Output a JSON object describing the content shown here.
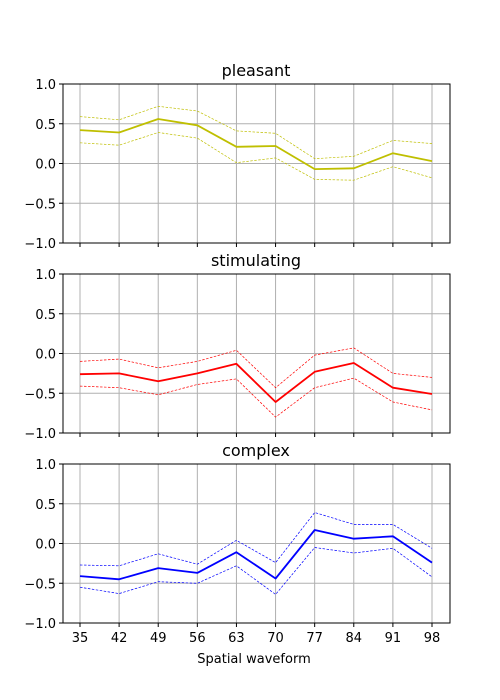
{
  "chart_data": [
    {
      "type": "line",
      "title": "pleasant",
      "xlabel": "",
      "ylabel": "",
      "x": [
        35,
        42,
        49,
        56,
        63,
        70,
        77,
        84,
        91,
        98
      ],
      "ylim": [
        -1.0,
        1.0
      ],
      "yticks": [
        "1.0",
        "0.5",
        "0.0",
        "−0.5",
        "−1.0"
      ],
      "grid": true,
      "color": "#bfbf00",
      "series": [
        {
          "role": "upper",
          "values": [
            0.59,
            0.55,
            0.72,
            0.66,
            0.41,
            0.38,
            0.06,
            0.09,
            0.29,
            0.25
          ]
        },
        {
          "role": "mean",
          "values": [
            0.42,
            0.39,
            0.56,
            0.48,
            0.21,
            0.22,
            -0.07,
            -0.06,
            0.13,
            0.03
          ]
        },
        {
          "role": "lower",
          "values": [
            0.26,
            0.23,
            0.39,
            0.32,
            0.01,
            0.07,
            -0.2,
            -0.21,
            -0.04,
            -0.18
          ]
        }
      ]
    },
    {
      "type": "line",
      "title": "stimulating",
      "xlabel": "",
      "ylabel": "",
      "x": [
        35,
        42,
        49,
        56,
        63,
        70,
        77,
        84,
        91,
        98
      ],
      "ylim": [
        -1.0,
        1.0
      ],
      "yticks": [
        "1.0",
        "0.5",
        "0.0",
        "−0.5",
        "−1.0"
      ],
      "grid": true,
      "color": "#ff0000",
      "series": [
        {
          "role": "upper",
          "values": [
            -0.1,
            -0.07,
            -0.18,
            -0.1,
            0.04,
            -0.43,
            -0.02,
            0.07,
            -0.25,
            -0.3
          ]
        },
        {
          "role": "mean",
          "values": [
            -0.26,
            -0.25,
            -0.35,
            -0.25,
            -0.13,
            -0.61,
            -0.23,
            -0.12,
            -0.43,
            -0.51
          ]
        },
        {
          "role": "lower",
          "values": [
            -0.41,
            -0.43,
            -0.52,
            -0.39,
            -0.32,
            -0.8,
            -0.43,
            -0.31,
            -0.61,
            -0.71
          ]
        }
      ]
    },
    {
      "type": "line",
      "title": "complex",
      "xlabel": "Spatial waveform",
      "ylabel": "",
      "x": [
        35,
        42,
        49,
        56,
        63,
        70,
        77,
        84,
        91,
        98
      ],
      "xticks": [
        "35",
        "42",
        "49",
        "56",
        "63",
        "70",
        "77",
        "84",
        "91",
        "98"
      ],
      "ylim": [
        -1.0,
        1.0
      ],
      "yticks": [
        "1.0",
        "0.5",
        "0.0",
        "−0.5",
        "−1.0"
      ],
      "grid": true,
      "color": "#0000ff",
      "series": [
        {
          "role": "upper",
          "values": [
            -0.27,
            -0.28,
            -0.13,
            -0.26,
            0.04,
            -0.24,
            0.39,
            0.24,
            0.24,
            -0.06
          ]
        },
        {
          "role": "mean",
          "values": [
            -0.41,
            -0.45,
            -0.31,
            -0.37,
            -0.11,
            -0.44,
            0.17,
            0.06,
            0.09,
            -0.24
          ]
        },
        {
          "role": "lower",
          "values": [
            -0.55,
            -0.63,
            -0.48,
            -0.5,
            -0.28,
            -0.64,
            -0.05,
            -0.12,
            -0.06,
            -0.42
          ]
        }
      ]
    }
  ]
}
